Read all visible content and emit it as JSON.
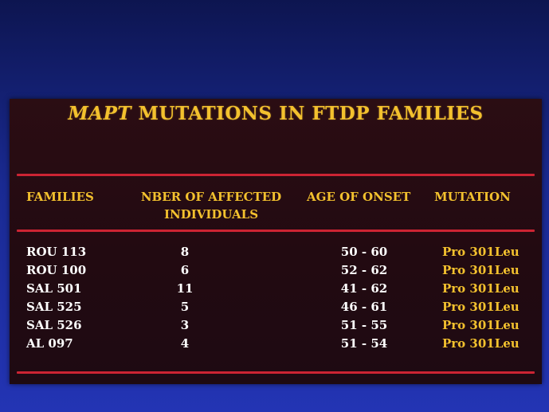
{
  "slide": {
    "title_italic": "MAPT",
    "title_rest": " MUTATIONS IN FTDP FAMILIES",
    "colors": {
      "background": "#1a2a92",
      "panel": "#260b12",
      "accent": "#f3c12e",
      "rule": "#cc2433",
      "text": "#ffffff"
    }
  },
  "table": {
    "headers": {
      "families": "FAMILIES",
      "nber_line1": "NBER OF AFFECTED",
      "nber_line2": "INDIVIDUALS",
      "age": "AGE OF ONSET",
      "mutation": "MUTATION"
    },
    "rows": [
      {
        "family": "ROU 113",
        "affected": "8",
        "age": "50 - 60",
        "mutation": "Pro 301Leu"
      },
      {
        "family": "ROU 100",
        "affected": "6",
        "age": "52 - 62",
        "mutation": "Pro 301Leu"
      },
      {
        "family": "SAL 501",
        "affected": "11",
        "age": "41 - 62",
        "mutation": "Pro 301Leu"
      },
      {
        "family": "SAL 525",
        "affected": "5",
        "age": "46 - 61",
        "mutation": "Pro 301Leu"
      },
      {
        "family": "SAL 526",
        "affected": "3",
        "age": "51 - 55",
        "mutation": "Pro 301Leu"
      },
      {
        "family": "AL 097",
        "affected": "4",
        "age": "51 - 54",
        "mutation": "Pro 301Leu"
      }
    ]
  }
}
